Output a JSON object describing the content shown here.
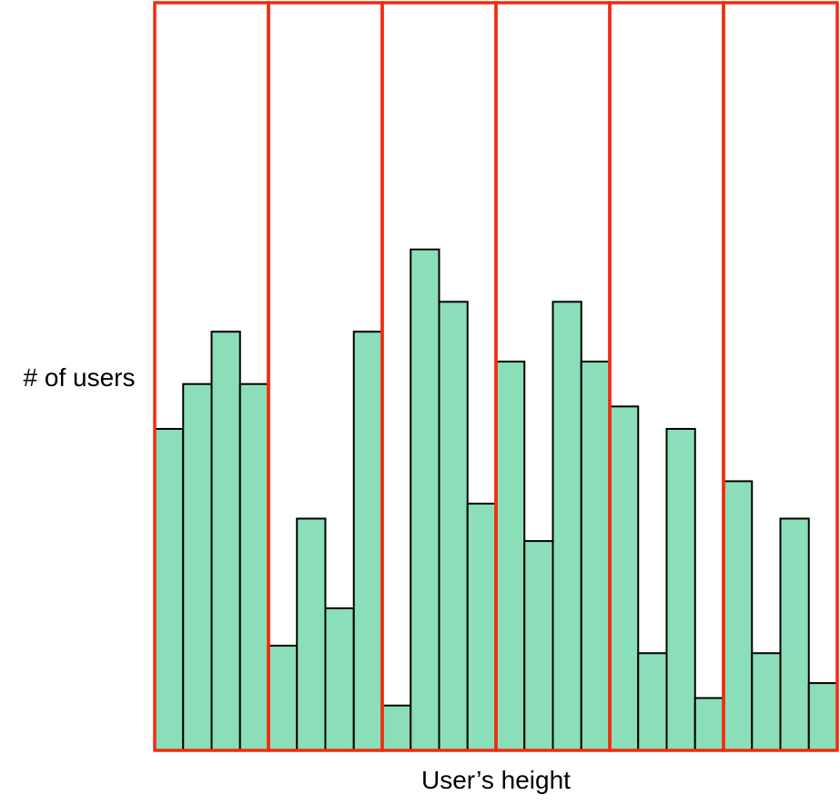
{
  "chart_data": {
    "type": "bar",
    "title": "",
    "xlabel": "User’s height",
    "ylabel": "# of users",
    "ylim": [
      0,
      100
    ],
    "grid": false,
    "legend": "none",
    "values": [
      43,
      49,
      56,
      49,
      14,
      31,
      19,
      56,
      6,
      67,
      60,
      33,
      52,
      28,
      60,
      52,
      46,
      13,
      43,
      7,
      36,
      13,
      31,
      9
    ],
    "bins": 6,
    "bars_per_bin": 4
  },
  "colors": {
    "bar_fill": "#8bdfb8",
    "bar_stroke": "#000000",
    "bin_outline": "#f12b10"
  }
}
